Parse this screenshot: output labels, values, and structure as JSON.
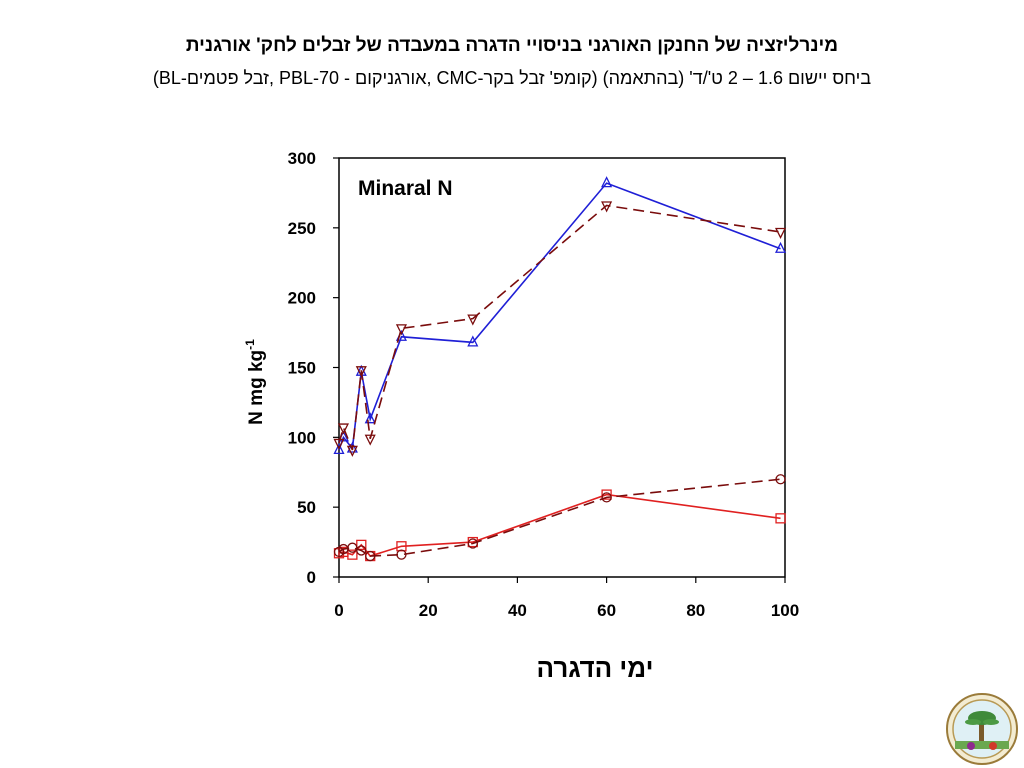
{
  "header": {
    "title": "מינרליזציה של החנקן האורגני בניסויי הדגרה במעבדה של זבלים לחק' אורגנית",
    "subtitle": "(BL-זבל פטמים, PBL-70 - אורגניקום, CMC-קומפ' זבל בקר) ביחס יישום 1.6 – 2 ט'/ד' (בהתאמה)"
  },
  "logo": {
    "icon": "institute-seal-icon"
  },
  "chart_data": {
    "type": "line",
    "annotation": "Minaral N",
    "xlabel": "ימי הדגרה",
    "ylabel": "N mg kg",
    "ylabel_superscript": "-1",
    "xlim": [
      0,
      100
    ],
    "ylim": [
      0,
      300
    ],
    "xticks": [
      0,
      20,
      40,
      60,
      80,
      100
    ],
    "yticks": [
      0,
      50,
      100,
      150,
      200,
      250,
      300
    ],
    "grid": false,
    "legend": "none",
    "series": [
      {
        "marker": "triangle-up",
        "color": "#1f1fd6",
        "dash": "solid",
        "x": [
          0,
          1,
          3,
          5,
          7,
          14,
          30,
          60,
          99
        ],
        "y": [
          91,
          100,
          92,
          147,
          113,
          172,
          168,
          282,
          235
        ]
      },
      {
        "marker": "triangle-down",
        "color": "#7a0c0c",
        "dash": "dashed",
        "x": [
          0,
          1,
          3,
          5,
          7,
          14,
          30,
          60,
          99
        ],
        "y": [
          96,
          107,
          91,
          148,
          99,
          178,
          185,
          266,
          247
        ]
      },
      {
        "marker": "square",
        "color": "#e02020",
        "dash": "solid",
        "x": [
          0,
          1,
          3,
          5,
          7,
          14,
          30,
          60,
          99
        ],
        "y": [
          17,
          18,
          16,
          23,
          15,
          22,
          25,
          59,
          42
        ]
      },
      {
        "marker": "circle",
        "color": "#7a0c0c",
        "dash": "dashed",
        "x": [
          0,
          1,
          3,
          5,
          7,
          14,
          30,
          60,
          99
        ],
        "y": [
          18,
          20,
          21,
          19,
          15,
          16,
          24,
          57,
          70
        ]
      }
    ]
  }
}
